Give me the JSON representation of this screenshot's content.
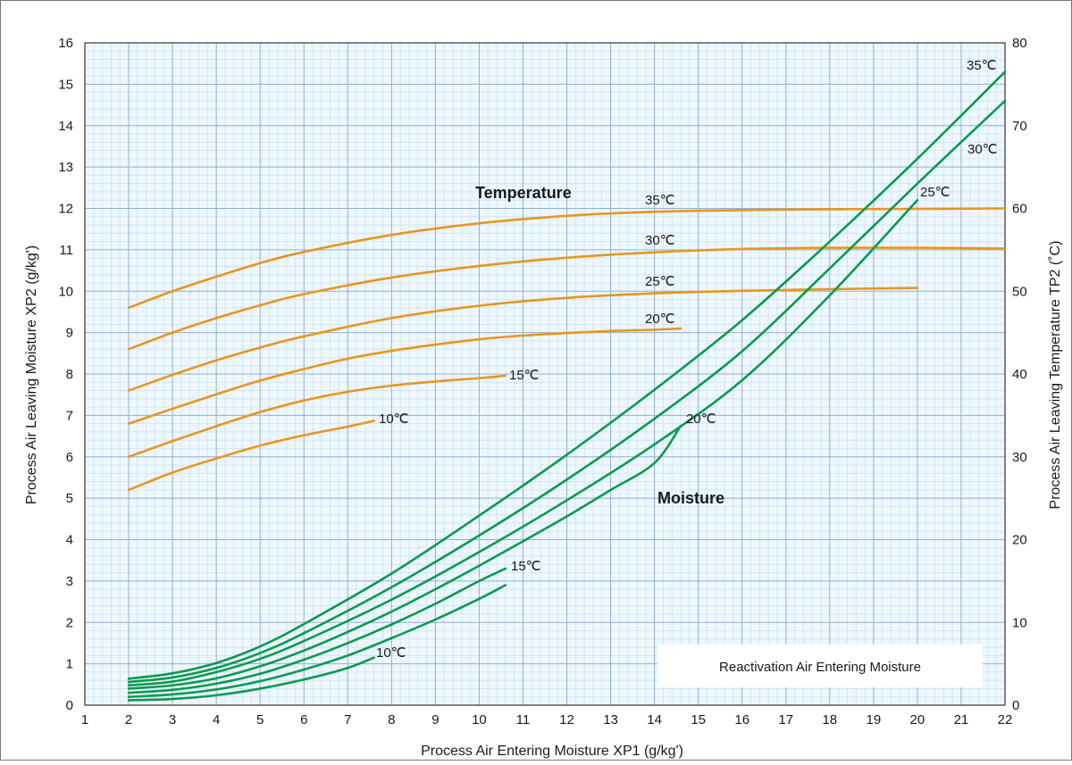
{
  "chart_data": {
    "type": "line",
    "title": "",
    "xlabel": "Process Air Entering Moisture XP1 (g/kg')",
    "ylabel_left": "Process Air Leaving Moisture XP2 (g/kg')",
    "ylabel_right": "Process Air Leaving Temperature TP2 (˚C)",
    "xlim": [
      1,
      22
    ],
    "ylim_left": [
      0,
      16
    ],
    "ylim_right": [
      0,
      80
    ],
    "x_ticks": [
      "1",
      "2",
      "3",
      "4",
      "5",
      "6",
      "7",
      "8",
      "9",
      "10",
      "11",
      "12",
      "13",
      "14",
      "15",
      "16",
      "17",
      "18",
      "19",
      "20",
      "21",
      "22"
    ],
    "y_left_ticks": [
      "0",
      "1",
      "2",
      "3",
      "4",
      "5",
      "6",
      "7",
      "8",
      "9",
      "10",
      "11",
      "12",
      "13",
      "14",
      "15",
      "16"
    ],
    "y_right_ticks": [
      "0",
      "10",
      "20",
      "30",
      "40",
      "50",
      "60",
      "70",
      "80"
    ],
    "grid": "on",
    "group_labels": {
      "temperature": "Temperature",
      "moisture": "Moisture"
    },
    "legend_box": "Reactivation Air Entering Moisture",
    "colors": {
      "temperature": "#e8961e",
      "moisture": "#0a9a4e",
      "grid_major": "#8fb0d6",
      "grid_minor": "#c9e3f3"
    },
    "temperature_series": [
      {
        "name": "10℃",
        "x": [
          2,
          3,
          4,
          5,
          6,
          7,
          7.6
        ],
        "y": [
          5.2,
          5.62,
          5.96,
          6.27,
          6.52,
          6.73,
          6.87
        ]
      },
      {
        "name": "15℃",
        "x": [
          2,
          3,
          4,
          5,
          6,
          7,
          8,
          9,
          10,
          10.6
        ],
        "y": [
          6.0,
          6.38,
          6.74,
          7.08,
          7.36,
          7.57,
          7.72,
          7.82,
          7.9,
          7.96
        ]
      },
      {
        "name": "20℃",
        "x": [
          2,
          3,
          4,
          5,
          6,
          7,
          8,
          9,
          10,
          11,
          12,
          13,
          14,
          14.6
        ],
        "y": [
          6.8,
          7.16,
          7.51,
          7.84,
          8.12,
          8.37,
          8.56,
          8.71,
          8.84,
          8.93,
          8.99,
          9.04,
          9.07,
          9.1
        ]
      },
      {
        "name": "25℃",
        "x": [
          2,
          3,
          4,
          5,
          6,
          8,
          10,
          12,
          14,
          16,
          18,
          20
        ],
        "y": [
          7.6,
          7.98,
          8.33,
          8.64,
          8.91,
          9.35,
          9.65,
          9.84,
          9.95,
          10.01,
          10.05,
          10.08
        ]
      },
      {
        "name": "30℃",
        "x": [
          2,
          3,
          4,
          5,
          6,
          8,
          10,
          12,
          14,
          16,
          18,
          20,
          22
        ],
        "y": [
          8.6,
          9.0,
          9.35,
          9.66,
          9.93,
          10.33,
          10.61,
          10.81,
          10.94,
          11.02,
          11.05,
          11.05,
          11.03
        ]
      },
      {
        "name": "35℃",
        "x": [
          2,
          3,
          4,
          5,
          6,
          8,
          10,
          12,
          14,
          16,
          18,
          20,
          22
        ],
        "y": [
          9.6,
          10.0,
          10.35,
          10.68,
          10.95,
          11.36,
          11.64,
          11.82,
          11.92,
          11.96,
          11.98,
          11.99,
          12.0
        ]
      }
    ],
    "moisture_series": [
      {
        "name": "10℃",
        "x": [
          2,
          3,
          4,
          5,
          6,
          7,
          7.6
        ],
        "y": [
          0.12,
          0.15,
          0.24,
          0.4,
          0.62,
          0.9,
          1.15
        ]
      },
      {
        "name": "",
        "x": [
          2,
          3,
          4,
          5,
          6,
          7,
          8,
          9,
          10,
          10.6
        ],
        "y": [
          0.2,
          0.26,
          0.38,
          0.58,
          0.86,
          1.2,
          1.62,
          2.07,
          2.57,
          2.9
        ]
      },
      {
        "name": "15℃",
        "x": [
          2,
          3,
          4,
          5,
          6,
          7,
          8,
          9,
          10,
          10.6
        ],
        "y": [
          0.3,
          0.37,
          0.52,
          0.76,
          1.1,
          1.5,
          1.95,
          2.45,
          3.0,
          3.3
        ]
      },
      {
        "name": "20℃",
        "x": [
          2,
          3,
          4,
          5,
          6,
          7,
          8,
          9,
          10,
          11,
          12,
          13,
          14,
          14.6
        ],
        "y": [
          0.4,
          0.48,
          0.65,
          0.94,
          1.32,
          1.77,
          2.26,
          2.8,
          3.37,
          3.96,
          4.56,
          5.2,
          5.85,
          6.75
        ]
      },
      {
        "name": "25℃",
        "x": [
          2,
          3,
          4,
          5,
          6,
          8,
          10,
          12,
          14,
          16,
          18,
          20
        ],
        "y": [
          0.48,
          0.57,
          0.8,
          1.12,
          1.55,
          2.55,
          3.7,
          4.95,
          6.3,
          7.85,
          9.9,
          12.2
        ]
      },
      {
        "name": "30℃",
        "x": [
          2,
          3,
          4,
          5,
          6,
          8,
          10,
          12,
          14,
          16,
          18,
          20,
          22
        ],
        "y": [
          0.56,
          0.67,
          0.9,
          1.26,
          1.74,
          2.85,
          4.1,
          5.45,
          6.92,
          8.55,
          10.55,
          12.6,
          14.6
        ]
      },
      {
        "name": "35℃",
        "x": [
          2,
          3,
          4,
          5,
          6,
          8,
          10,
          12,
          14,
          16,
          18,
          20,
          22
        ],
        "y": [
          0.64,
          0.77,
          1.02,
          1.42,
          1.96,
          3.18,
          4.58,
          6.05,
          7.62,
          9.3,
          11.2,
          13.2,
          15.3
        ]
      }
    ]
  }
}
